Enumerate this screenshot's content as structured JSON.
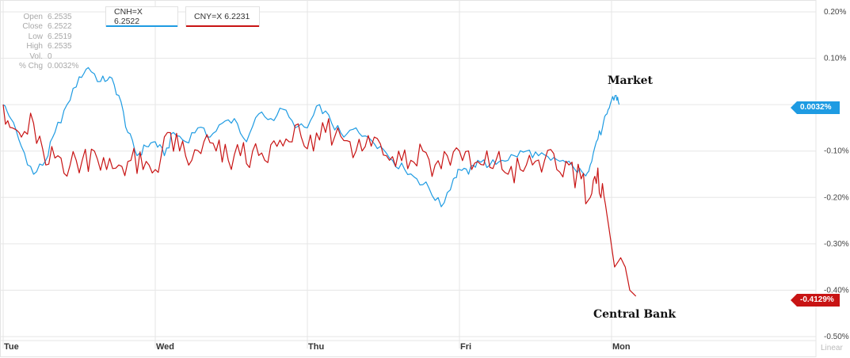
{
  "ohlc": [
    {
      "label": "Open",
      "value": "6.2535"
    },
    {
      "label": "Close",
      "value": "6.2522"
    },
    {
      "label": "Low",
      "value": "6.2519"
    },
    {
      "label": "High",
      "value": "6.2535"
    },
    {
      "label": "Vol.",
      "value": "0"
    },
    {
      "label": "% Chg",
      "value": "0.0032%"
    }
  ],
  "legend": [
    {
      "label": "CNH=X 6.2522",
      "color": "#1e9be2"
    },
    {
      "label": "CNY=X 6.2231",
      "color": "#c81414"
    }
  ],
  "annotations": {
    "market": "Market",
    "central_bank": "Central Bank"
  },
  "tags": {
    "cnh": "0.0032%",
    "cny": "-0.4129%"
  },
  "scale_label": "Linear",
  "chart_data": {
    "type": "line",
    "ylim": [
      -0.5,
      0.2
    ],
    "yticks": [
      0.2,
      0.1,
      0.0,
      -0.1,
      -0.2,
      -0.3,
      -0.4,
      -0.5
    ],
    "ytick_labels": [
      "0.20%",
      "0.10%",
      "",
      "-0.10%",
      "-0.20%",
      "-0.30%",
      "-0.40%",
      "-0.50%"
    ],
    "day_labels": [
      "Tue",
      "Wed",
      "Thu",
      "Fri",
      "Mon"
    ],
    "day_positions": [
      0,
      1,
      2,
      3,
      4
    ],
    "xlim": [
      0,
      5
    ],
    "series": [
      {
        "name": "CNH=X",
        "color": "#1e9be2",
        "x": [
          0,
          0.05,
          0.12,
          0.2,
          0.28,
          0.34,
          0.42,
          0.5,
          0.56,
          0.64,
          0.7,
          0.76,
          0.82,
          0.88,
          0.94,
          1.0,
          1.06,
          1.12,
          1.2,
          1.28,
          1.36,
          1.44,
          1.52,
          1.6,
          1.68,
          1.76,
          1.84,
          1.92,
          2.0,
          2.08,
          2.16,
          2.24,
          2.32,
          2.4,
          2.48,
          2.56,
          2.64,
          2.72,
          2.8,
          2.88,
          2.96,
          3.0,
          3.06,
          3.12,
          3.2,
          3.28,
          3.36,
          3.44,
          3.52,
          3.6,
          3.68,
          3.76,
          3.82,
          3.86,
          3.9,
          3.94,
          3.97,
          4.0,
          4.03,
          4.05
        ],
        "y": [
          0.0,
          -0.03,
          -0.09,
          -0.15,
          -0.12,
          -0.06,
          0.0,
          0.06,
          0.08,
          0.05,
          0.06,
          0.02,
          -0.06,
          -0.11,
          -0.09,
          -0.08,
          -0.11,
          -0.06,
          -0.08,
          -0.05,
          -0.07,
          -0.04,
          -0.03,
          -0.08,
          -0.02,
          -0.03,
          -0.01,
          -0.05,
          -0.05,
          -0.0,
          -0.04,
          -0.07,
          -0.05,
          -0.07,
          -0.09,
          -0.12,
          -0.14,
          -0.16,
          -0.18,
          -0.22,
          -0.16,
          -0.14,
          -0.15,
          -0.12,
          -0.13,
          -0.12,
          -0.11,
          -0.1,
          -0.11,
          -0.12,
          -0.12,
          -0.14,
          -0.15,
          -0.13,
          -0.08,
          -0.05,
          -0.02,
          0.01,
          0.02,
          0.0
        ]
      },
      {
        "name": "CNY=X",
        "color": "#c81414",
        "x": [
          0,
          0.06,
          0.12,
          0.2,
          0.28,
          0.36,
          0.44,
          0.52,
          0.6,
          0.68,
          0.76,
          0.84,
          0.92,
          1.0,
          1.08,
          1.16,
          1.24,
          1.32,
          1.4,
          1.48,
          1.56,
          1.64,
          1.72,
          1.8,
          1.88,
          1.96,
          2.04,
          2.12,
          2.2,
          2.28,
          2.36,
          2.44,
          2.52,
          2.6,
          2.68,
          2.76,
          2.84,
          2.92,
          3.0,
          3.08,
          3.16,
          3.24,
          3.32,
          3.4,
          3.48,
          3.56,
          3.64,
          3.72,
          3.8,
          3.86,
          3.9,
          3.94,
          3.98,
          4.02,
          4.06,
          4.09,
          4.12,
          4.16
        ],
        "y": [
          0.0,
          -0.05,
          -0.07,
          -0.04,
          -0.13,
          -0.11,
          -0.13,
          -0.12,
          -0.1,
          -0.14,
          -0.13,
          -0.12,
          -0.14,
          -0.14,
          -0.06,
          -0.1,
          -0.12,
          -0.08,
          -0.1,
          -0.12,
          -0.11,
          -0.1,
          -0.12,
          -0.09,
          -0.08,
          -0.07,
          -0.1,
          -0.06,
          -0.05,
          -0.08,
          -0.1,
          -0.07,
          -0.11,
          -0.1,
          -0.12,
          -0.1,
          -0.13,
          -0.11,
          -0.1,
          -0.14,
          -0.13,
          -0.12,
          -0.15,
          -0.14,
          -0.13,
          -0.12,
          -0.14,
          -0.13,
          -0.16,
          -0.2,
          -0.17,
          -0.17,
          -0.26,
          -0.35,
          -0.33,
          -0.35,
          -0.4,
          -0.4129
        ]
      }
    ]
  }
}
